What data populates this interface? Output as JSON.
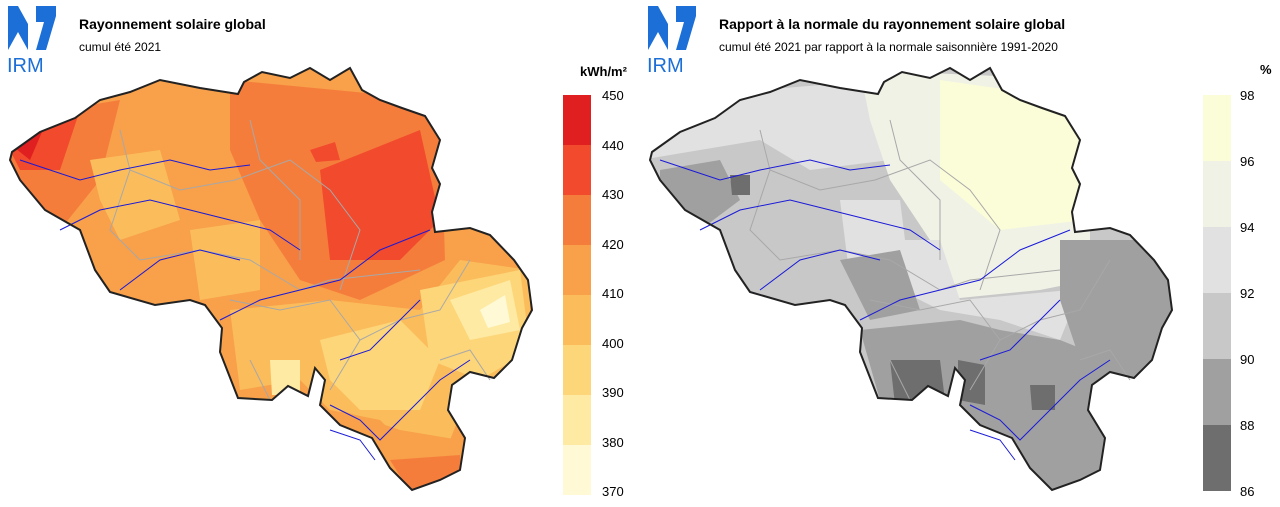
{
  "left": {
    "logo_text": "IRM",
    "title": "Rayonnement solaire global",
    "subtitle": "cumul été 2021",
    "unit": "kWh/m²",
    "legend": {
      "ticks": [
        "450",
        "440",
        "430",
        "420",
        "410",
        "400",
        "390",
        "380",
        "370"
      ],
      "colors": [
        "#e02020",
        "#f24a2c",
        "#f57d3c",
        "#f8a04a",
        "#fbbd5c",
        "#fdd67a",
        "#feeaa3",
        "#fff9d6"
      ]
    }
  },
  "right": {
    "logo_text": "IRM",
    "title": "Rapport à la normale du rayonnement solaire global",
    "subtitle": "cumul été 2021 par rapport à la normale saisonnière 1991-2020",
    "unit": "%",
    "legend": {
      "ticks": [
        "98",
        "96",
        "94",
        "92",
        "90",
        "88",
        "86"
      ],
      "colors": [
        "#fbfdd8",
        "#f0f2e6",
        "#e1e1e1",
        "#c8c8c8",
        "#a0a0a0",
        "#6e6e6e"
      ]
    }
  }
}
